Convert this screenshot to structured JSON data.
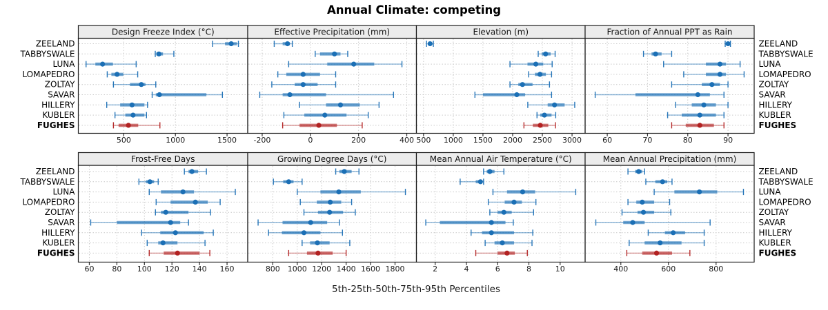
{
  "title": "Annual Climate: competing",
  "caption": "5th-25th-50th-75th-95th Percentiles",
  "colors": {
    "series": "#1B6FB5",
    "highlight": "#B22222",
    "strip_bg": "#ECECEC",
    "panel_border": "#1c1c1c",
    "grid": "#c9c9c9",
    "tick": "#333333",
    "tick_label": "#1a1a1a"
  },
  "locations": [
    {
      "name": "ZEELAND",
      "highlight": false
    },
    {
      "name": "TABBYSWALE",
      "highlight": false
    },
    {
      "name": "LUNA",
      "highlight": false
    },
    {
      "name": "LOMAPEDRO",
      "highlight": false
    },
    {
      "name": "ZOLTAY",
      "highlight": false
    },
    {
      "name": "SAVAR",
      "highlight": false
    },
    {
      "name": "HILLERY",
      "highlight": false
    },
    {
      "name": "KUBLER",
      "highlight": false
    },
    {
      "name": "FUGHES",
      "highlight": true
    }
  ],
  "chart_data": {
    "type": "percentile-dotplot",
    "percentile_labels": [
      "5th",
      "25th",
      "50th",
      "75th",
      "95th"
    ],
    "layout": {
      "rows": 2,
      "cols": 4,
      "grid": "dotted",
      "legend": "none"
    },
    "panels": [
      {
        "title": "Design Freeze Index (°C)",
        "row": 0,
        "col": 0,
        "xlim": [
          60,
          1700
        ],
        "ticks": [
          500,
          1000,
          1500
        ],
        "values": {
          "ZEELAND": [
            1360,
            1480,
            1540,
            1595,
            1610
          ],
          "TABBYSWALE": [
            805,
            815,
            840,
            880,
            985
          ],
          "LUNA": [
            135,
            225,
            295,
            395,
            620
          ],
          "LOMAPEDRO": [
            340,
            380,
            435,
            495,
            635
          ],
          "ZOLTAY": [
            400,
            560,
            670,
            710,
            810
          ],
          "SAVAR": [
            775,
            810,
            845,
            1300,
            1455
          ],
          "HILLERY": [
            335,
            465,
            580,
            700,
            730
          ],
          "KUBLER": [
            415,
            515,
            590,
            700,
            720
          ],
          "FUGHES": [
            400,
            450,
            545,
            640,
            850
          ]
        }
      },
      {
        "title": "Effective Precipitation (mm)",
        "row": 0,
        "col": 1,
        "xlim": [
          -260,
          440
        ],
        "ticks": [
          -200,
          0,
          200,
          400
        ],
        "values": {
          "ZEELAND": [
            -150,
            -115,
            -95,
            -85,
            -75
          ],
          "TABBYSWALE": [
            20,
            40,
            100,
            125,
            155
          ],
          "LUNA": [
            -90,
            70,
            180,
            265,
            380
          ],
          "LOMAPEDRO": [
            -135,
            -100,
            -30,
            40,
            105
          ],
          "ZOLTAY": [
            -160,
            -65,
            -30,
            30,
            105
          ],
          "SAVAR": [
            -210,
            -115,
            -85,
            65,
            345
          ],
          "HILLERY": [
            -45,
            65,
            125,
            205,
            285
          ],
          "KUBLER": [
            -110,
            -25,
            60,
            150,
            240
          ],
          "FUGHES": [
            -115,
            -45,
            35,
            110,
            215
          ]
        }
      },
      {
        "title": "Elevation (m)",
        "row": 0,
        "col": 2,
        "xlim": [
          380,
          3220
        ],
        "ticks": [
          500,
          1000,
          1500,
          2000,
          2500,
          3000
        ],
        "values": {
          "ZEELAND": [
            550,
            580,
            610,
            640,
            665
          ],
          "TABBYSWALE": [
            2430,
            2490,
            2555,
            2640,
            2715
          ],
          "LUNA": [
            1955,
            2250,
            2390,
            2515,
            2665
          ],
          "LOMAPEDRO": [
            2270,
            2375,
            2460,
            2560,
            2655
          ],
          "ZOLTAY": [
            1955,
            2095,
            2165,
            2335,
            2620
          ],
          "SAVAR": [
            1365,
            1500,
            2070,
            2210,
            2655
          ],
          "HILLERY": [
            2255,
            2590,
            2705,
            2875,
            3045
          ],
          "KUBLER": [
            2410,
            2465,
            2535,
            2655,
            2725
          ],
          "FUGHES": [
            2190,
            2340,
            2465,
            2600,
            2720
          ]
        }
      },
      {
        "title": "Fraction of Annual PPT as Rain",
        "row": 0,
        "col": 3,
        "xlim": [
          54.5,
          96.5
        ],
        "ticks": [
          60,
          70,
          80,
          90
        ],
        "values": {
          "ZEELAND": [
            89.3,
            89.7,
            90,
            90.3,
            90.6
          ],
          "TABBYSWALE": [
            69,
            71,
            72,
            73.5,
            76
          ],
          "LUNA": [
            74,
            84.5,
            88,
            89.5,
            93
          ],
          "LOMAPEDRO": [
            79,
            84.5,
            88,
            89.5,
            94
          ],
          "ZOLTAY": [
            76,
            83.5,
            86,
            88,
            90
          ],
          "SAVAR": [
            57,
            67,
            82.5,
            85.5,
            89
          ],
          "HILLERY": [
            77,
            81,
            84,
            87,
            90
          ],
          "KUBLER": [
            75,
            78.5,
            83,
            87,
            89
          ],
          "FUGHES": [
            76,
            79.5,
            83,
            86.5,
            89
          ]
        }
      },
      {
        "title": "Frost-Free Days",
        "row": 1,
        "col": 0,
        "xlim": [
          52,
          175
        ],
        "ticks": [
          60,
          80,
          100,
          120,
          140,
          160
        ],
        "values": {
          "ZEELAND": [
            129,
            132,
            134.5,
            139,
            145
          ],
          "TABBYSWALE": [
            96,
            101,
            104,
            107,
            110
          ],
          "LUNA": [
            103.5,
            112,
            128,
            136,
            166
          ],
          "LOMAPEDRO": [
            108.5,
            119,
            137,
            146,
            155
          ],
          "ZOLTAY": [
            108,
            112,
            115.5,
            132,
            148
          ],
          "SAVAR": [
            61,
            80,
            119,
            126,
            132
          ],
          "HILLERY": [
            98,
            111.5,
            122.5,
            143,
            150
          ],
          "KUBLER": [
            102,
            110,
            113.5,
            124,
            144
          ],
          "FUGHES": [
            103.5,
            114,
            124,
            140,
            147.5
          ]
        }
      },
      {
        "title": "Growing Degree Days (°C)",
        "row": 1,
        "col": 1,
        "xlim": [
          595,
          1975
        ],
        "ticks": [
          800,
          1000,
          1200,
          1400,
          1600,
          1800
        ],
        "values": {
          "ZEELAND": [
            1315,
            1345,
            1385,
            1445,
            1505
          ],
          "TABBYSWALE": [
            805,
            885,
            930,
            970,
            1040
          ],
          "LUNA": [
            1000,
            1190,
            1340,
            1520,
            1885
          ],
          "LOMAPEDRO": [
            1025,
            1160,
            1270,
            1360,
            1445
          ],
          "ZOLTAY": [
            1055,
            1170,
            1265,
            1375,
            1475
          ],
          "SAVAR": [
            680,
            880,
            1110,
            1245,
            1345
          ],
          "HILLERY": [
            765,
            875,
            1055,
            1190,
            1370
          ],
          "KUBLER": [
            1040,
            1105,
            1165,
            1265,
            1430
          ],
          "FUGHES": [
            930,
            1080,
            1170,
            1290,
            1400
          ]
        }
      },
      {
        "title": "Mean Annual Air Temperature (°C)",
        "row": 1,
        "col": 2,
        "xlim": [
          0.8,
          11.6
        ],
        "ticks": [
          2,
          4,
          6,
          8,
          10
        ],
        "values": {
          "ZEELAND": [
            5.1,
            5.3,
            5.5,
            5.8,
            6.4
          ],
          "TABBYSWALE": [
            3.6,
            4.6,
            4.9,
            5.0,
            5.1
          ],
          "LUNA": [
            5.7,
            6.6,
            7.6,
            8.4,
            11.0
          ],
          "LOMAPEDRO": [
            5.4,
            6.45,
            7.05,
            7.55,
            8.45
          ],
          "ZOLTAY": [
            5.5,
            6.0,
            6.4,
            6.9,
            8.3
          ],
          "SAVAR": [
            1.4,
            2.3,
            5.6,
            6.5,
            7.0
          ],
          "HILLERY": [
            4.3,
            5.0,
            5.6,
            7.05,
            8.25
          ],
          "KUBLER": [
            5.2,
            5.8,
            6.3,
            7.05,
            8.2
          ],
          "FUGHES": [
            4.6,
            6.0,
            6.6,
            7.1,
            7.9
          ]
        }
      },
      {
        "title": "Mean Annual Precipitation (mm)",
        "row": 1,
        "col": 3,
        "xlim": [
          250,
          960
        ],
        "ticks": [
          400,
          600,
          800
        ],
        "values": {
          "ZEELAND": [
            430,
            460,
            475,
            490,
            500
          ],
          "TABBYSWALE": [
            505,
            545,
            575,
            595,
            615
          ],
          "LUNA": [
            540,
            625,
            730,
            805,
            915
          ],
          "LOMAPEDRO": [
            430,
            465,
            490,
            540,
            605
          ],
          "ZOLTAY": [
            405,
            470,
            495,
            540,
            610
          ],
          "SAVAR": [
            295,
            410,
            450,
            500,
            775
          ],
          "HILLERY": [
            515,
            585,
            620,
            670,
            750
          ],
          "KUBLER": [
            435,
            500,
            565,
            655,
            750
          ],
          "FUGHES": [
            425,
            490,
            550,
            615,
            690
          ]
        }
      }
    ]
  }
}
